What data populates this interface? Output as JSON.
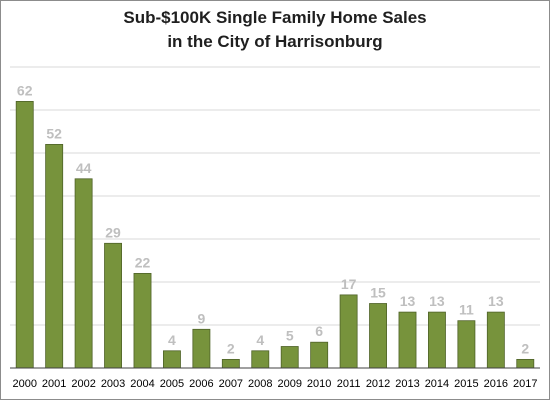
{
  "chart_data": {
    "type": "bar",
    "title_lines": [
      "Sub-$100K Single Family Home Sales",
      "in the City of Harrisonburg"
    ],
    "xlabel": "",
    "ylabel": "",
    "categories": [
      "2000",
      "2001",
      "2002",
      "2003",
      "2004",
      "2005",
      "2006",
      "2007",
      "2008",
      "2009",
      "2010",
      "2011",
      "2012",
      "2013",
      "2014",
      "2015",
      "2016",
      "2017"
    ],
    "values": [
      62,
      52,
      44,
      29,
      22,
      4,
      9,
      2,
      4,
      5,
      6,
      17,
      15,
      13,
      13,
      11,
      13,
      2
    ],
    "ylim": [
      0,
      70
    ],
    "y_gridlines": [
      10,
      20,
      30,
      40,
      50,
      60,
      70
    ],
    "grid": true,
    "legend": "none",
    "data_labels": true,
    "colors": {
      "bar_fill": "#77933c",
      "bar_stroke": "#4f6228",
      "data_label": "#bfbfbf",
      "gridline": "#d9d9d9"
    }
  }
}
